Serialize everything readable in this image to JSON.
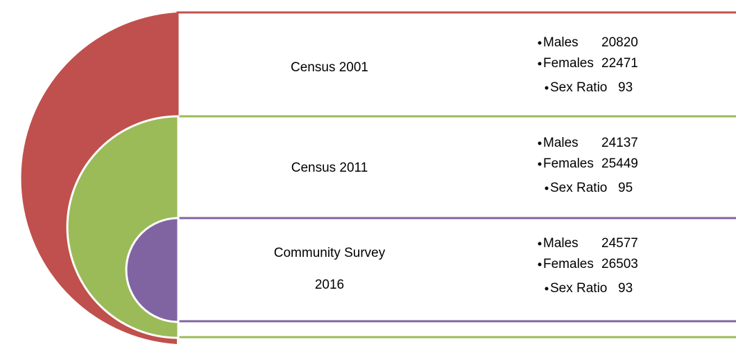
{
  "sections": [
    {
      "title": "Census 2001",
      "items": [
        {
          "label": "Males",
          "value": 20820
        },
        {
          "label": "Females",
          "value": 22471
        },
        {
          "label": "Sex Ratio",
          "value": 93
        }
      ]
    },
    {
      "title": "Census 2011",
      "items": [
        {
          "label": "Males",
          "value": 24137
        },
        {
          "label": "Females",
          "value": 25449
        },
        {
          "label": "Sex Ratio",
          "value": 95
        }
      ]
    },
    {
      "title": "Community Survey 2016",
      "items": [
        {
          "label": "Males",
          "value": 24577
        },
        {
          "label": "Females",
          "value": 26503
        },
        {
          "label": "Sex Ratio",
          "value": 93
        }
      ]
    }
  ]
}
